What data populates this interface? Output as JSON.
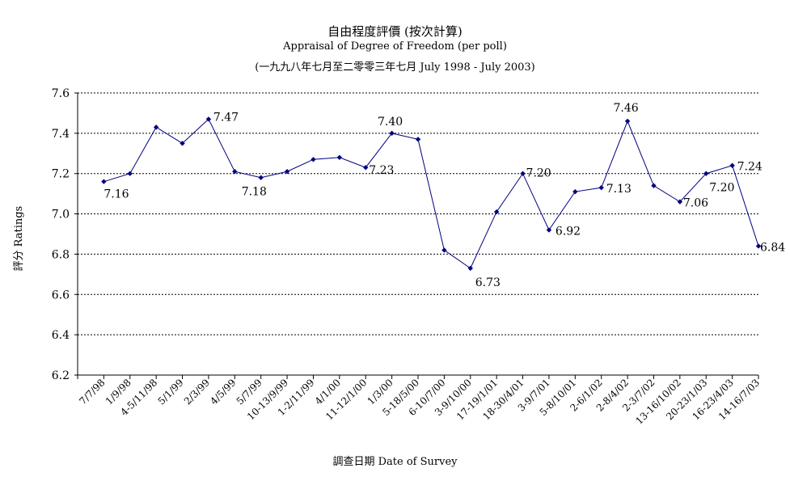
{
  "chart_data": {
    "type": "line",
    "title": "自由程度評價 (按次計算)",
    "subtitle": "Appraisal of Degree of Freedom  (per poll)",
    "subtitle2": "(一九九八年七月至二零零三年七月 July 1998 - July 2003)",
    "xlabel": "調查日期 Date of Survey",
    "ylabel": "評分 Ratings",
    "ylim": [
      6.2,
      7.6
    ],
    "yticks": [
      "6.2",
      "6.4",
      "6.6",
      "6.8",
      "7.0",
      "7.2",
      "7.4",
      "7.6"
    ],
    "grid": true,
    "categories": [
      "7/7/98",
      "1/9/98",
      "4-5/11/98",
      "5/1/99",
      "2/3/99",
      "4/5/99",
      "5/7/99",
      "10-13/9/99",
      "1-2/11/99",
      "4/1/00",
      "11-12/1/00",
      "1/3/00",
      "5-18/5/00",
      "6-10/7/00",
      "3-9/10/00",
      "17-19/1/01",
      "18-30/4/01",
      "3-9/7/01",
      "5-8/10/01",
      "2-6/1/02",
      "2-8/4/02",
      "2-3/7/02",
      "13-16/10/02",
      "20-23/1/03",
      "16-23/4/03",
      "14-16/7/03"
    ],
    "series": [
      {
        "values": [
          7.16,
          7.2,
          7.43,
          7.35,
          7.47,
          7.21,
          7.18,
          7.21,
          7.27,
          7.28,
          7.23,
          7.4,
          7.37,
          6.82,
          6.73,
          7.01,
          7.2,
          6.92,
          7.11,
          7.13,
          7.46,
          7.14,
          7.06,
          7.2,
          7.24,
          6.84
        ],
        "color": "#000080"
      }
    ],
    "data_labels": [
      {
        "index": 0,
        "text": "7.16"
      },
      {
        "index": 4,
        "text": "7.47"
      },
      {
        "index": 6,
        "text": "7.18"
      },
      {
        "index": 10,
        "text": "7.23"
      },
      {
        "index": 11,
        "text": "7.40"
      },
      {
        "index": 14,
        "text": "6.73"
      },
      {
        "index": 16,
        "text": "7.20"
      },
      {
        "index": 17,
        "text": "6.92"
      },
      {
        "index": 19,
        "text": "7.13"
      },
      {
        "index": 20,
        "text": "7.46"
      },
      {
        "index": 22,
        "text": "7.06"
      },
      {
        "index": 23,
        "text": "7.20"
      },
      {
        "index": 24,
        "text": "7.24"
      },
      {
        "index": 25,
        "text": "6.84"
      }
    ]
  }
}
